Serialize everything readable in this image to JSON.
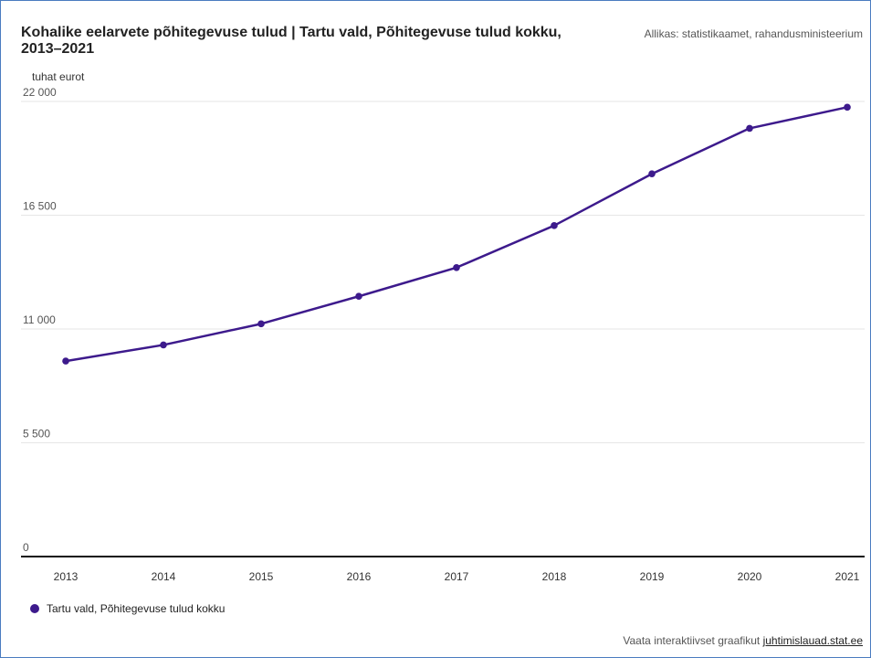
{
  "title": "Kohalike eelarvete põhitegevuse tulud | Tartu vald, Põhitegevuse tulud kokku, 2013–2021",
  "source": "Allikas: statistikaamet, rahandusministeerium",
  "footer": {
    "text": "Vaata interaktiivset graafikut",
    "link": "juhtimislauad.stat.ee"
  },
  "colors": {
    "series": "#3d1a8c",
    "grid": "#e6e6e6",
    "axis": "#111111"
  },
  "chart_data": {
    "type": "line",
    "title": "Kohalike eelarvete põhitegevuse tulud | Tartu vald, Põhitegevuse tulud kokku, 2013–2021",
    "ylabel": "tuhat eurot",
    "xlabel": "",
    "ylim": [
      0,
      22000
    ],
    "yticks": [
      0,
      5500,
      11000,
      16500,
      22000
    ],
    "ytick_labels": [
      "0",
      "5 500",
      "11 000",
      "16 500",
      "22 000"
    ],
    "x": [
      "2013",
      "2014",
      "2015",
      "2016",
      "2017",
      "2018",
      "2019",
      "2020",
      "2021"
    ],
    "series": [
      {
        "name": "Tartu vald, Põhitegevuse tulud kokku",
        "values": [
          9450,
          10230,
          11250,
          12580,
          13970,
          16000,
          18500,
          20700,
          21720
        ]
      }
    ],
    "grid": true,
    "legend": "bottom-left"
  }
}
